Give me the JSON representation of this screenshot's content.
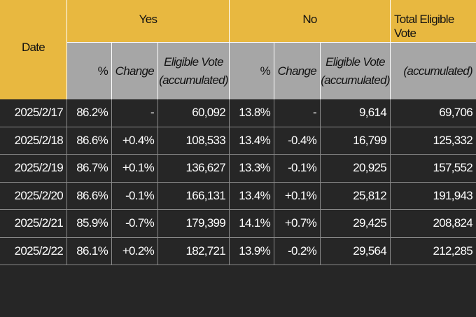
{
  "header": {
    "date": "Date",
    "yes": "Yes",
    "no": "No",
    "total": "Total Eligible Vote"
  },
  "subheader": {
    "yes": {
      "percent": "%",
      "change": "Change",
      "eligible": [
        "Eligible Vote",
        "(accumulated)"
      ]
    },
    "no": {
      "percent": "%",
      "change": "Change",
      "eligible": [
        "Eligible Vote",
        "(accumulated)"
      ]
    },
    "total": "(accumulated)"
  },
  "table": {
    "rows": [
      [
        "2025/2/17",
        "86.2%",
        "-",
        "60,092",
        "13.8%",
        "-",
        "9,614",
        "69,706"
      ],
      [
        "2025/2/18",
        "86.6%",
        "+0.4%",
        "108,533",
        "13.4%",
        "-0.4%",
        "16,799",
        "125,332"
      ],
      [
        "2025/2/19",
        "86.7%",
        "+0.1%",
        "136,627",
        "13.3%",
        "-0.1%",
        "20,925",
        "157,552"
      ],
      [
        "2025/2/20",
        "86.6%",
        "-0.1%",
        "166,131",
        "13.4%",
        "+0.1%",
        "25,812",
        "191,943"
      ],
      [
        "2025/2/21",
        "85.9%",
        "-0.7%",
        "179,399",
        "14.1%",
        "+0.7%",
        "29,425",
        "208,824"
      ],
      [
        "2025/2/22",
        "86.1%",
        "+0.2%",
        "182,721",
        "13.9%",
        "-0.2%",
        "29,564",
        "212,285"
      ]
    ]
  }
}
